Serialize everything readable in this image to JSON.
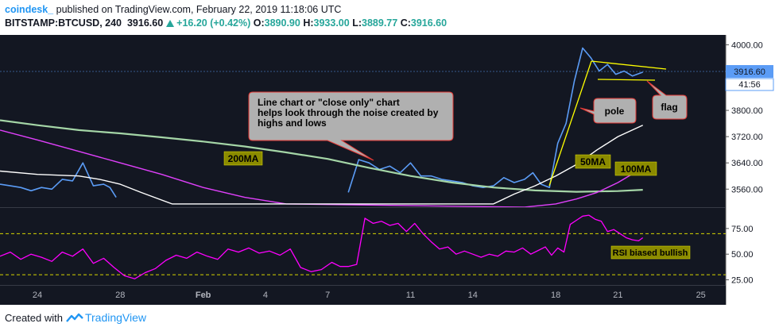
{
  "header": {
    "brand": "coindesk_",
    "published": "published on TradingView.com, February 22, 2019 11:18:06 UTC",
    "symbol": "BITSTAMP:BTCUSD, 240",
    "last": "3916.60",
    "change": "+16.20 (+0.42%)",
    "o_label": "O:",
    "o": "3890.90",
    "h_label": "H:",
    "h": "3933.00",
    "l_label": "L:",
    "l": "3889.77",
    "c_label": "C:",
    "c": "3916.60"
  },
  "footer": {
    "created_with": "Created with",
    "tradingview": "TradingView"
  },
  "colors": {
    "background": "#131722",
    "price": "#5b9cf6",
    "ma200": "#a5d6a7",
    "ma100": "#e040fb",
    "ma50": "#ffffff",
    "rsi": "#ff00ff",
    "annotation_fill": "#b0b0b0",
    "annotation_border": "#e53935",
    "pattern_lines": "#ffff00",
    "badge": "#8b8b00"
  },
  "annotations": {
    "callout": "Line chart or \"close only\" chart\nhelps look through the noise created by\nhighs and lows",
    "pole": "pole",
    "flag": "flag",
    "ma200": "200MA",
    "ma50": "50MA",
    "ma100": "100MA",
    "rsi_note": "RSI biased bullish"
  },
  "price_tag": {
    "value": "3916.60",
    "countdown": "41:56"
  },
  "chart_data": [
    {
      "type": "line",
      "title": "BITSTAMP:BTCUSD, 240",
      "x_ticks": [
        "24",
        "28",
        "Feb",
        "4",
        "7",
        "11",
        "14",
        "18",
        "21",
        "25"
      ],
      "x_tick_days": [
        24,
        28,
        32,
        35,
        38,
        42,
        45,
        49,
        52,
        56
      ],
      "x_range": [
        22.2,
        57.2
      ],
      "y_ticks": [
        3560,
        3640,
        3720,
        3800,
        4000
      ],
      "ylim": [
        3505,
        4030
      ],
      "log_scale": false,
      "grid": false,
      "series": [
        {
          "name": "",
          "role": "price",
          "x": [
            22.2,
            22.7,
            23.2,
            23.7,
            24.2,
            24.7,
            25.2,
            25.7,
            26.2,
            26.7,
            27.2,
            27.5,
            27.8
          ],
          "values": [
            3575,
            3570,
            3565,
            3555,
            3565,
            3560,
            3590,
            3585,
            3640,
            3570,
            3575,
            3565,
            3535
          ]
        },
        {
          "name": "",
          "role": "price",
          "x": [
            39.0,
            39.5,
            40.0,
            40.5,
            41.0,
            41.5,
            42.0,
            42.5,
            43.0,
            43.5,
            44.0,
            44.5,
            45.0,
            45.5,
            46.0,
            46.5,
            47.0,
            47.5,
            47.9,
            48.3,
            48.7,
            49.1,
            49.5,
            49.9,
            50.3,
            50.7,
            51.1,
            51.5,
            51.9,
            52.3,
            52.7,
            53.2
          ],
          "values": [
            3550,
            3650,
            3640,
            3620,
            3630,
            3610,
            3640,
            3600,
            3600,
            3590,
            3585,
            3580,
            3570,
            3565,
            3570,
            3595,
            3580,
            3590,
            3610,
            3575,
            3565,
            3700,
            3760,
            3890,
            3990,
            3960,
            3920,
            3940,
            3910,
            3920,
            3905,
            3916.6
          ]
        },
        {
          "name": "200MA",
          "x": [
            22.2,
            24,
            26,
            28,
            30,
            32,
            34,
            36,
            38,
            40,
            42,
            44,
            46,
            48,
            50,
            52,
            53.2
          ],
          "values": [
            3770,
            3755,
            3740,
            3730,
            3718,
            3705,
            3690,
            3672,
            3652,
            3625,
            3600,
            3580,
            3565,
            3556,
            3552,
            3554,
            3558
          ]
        },
        {
          "name": "100MA",
          "x": [
            22.2,
            24,
            26,
            28,
            30,
            32,
            34,
            36,
            47.5,
            49,
            50,
            51,
            52,
            53.2
          ],
          "values": [
            3740,
            3710,
            3675,
            3640,
            3605,
            3565,
            3535,
            3515,
            3505,
            3515,
            3530,
            3550,
            3580,
            3625
          ]
        },
        {
          "name": "50MA",
          "x": [
            22.2,
            24,
            26,
            27,
            28,
            29,
            30.5,
            46,
            47,
            48,
            49,
            50,
            51,
            52,
            53.2
          ],
          "values": [
            3615,
            3605,
            3600,
            3590,
            3575,
            3550,
            3515,
            3515,
            3545,
            3570,
            3600,
            3635,
            3680,
            3720,
            3755
          ]
        }
      ]
    },
    {
      "type": "line",
      "title": "RSI",
      "x_range": [
        22.2,
        57.2
      ],
      "y_ticks": [
        25,
        50,
        75
      ],
      "ylim": [
        20,
        95
      ],
      "guides": [
        30,
        70
      ],
      "grid": false,
      "series": [
        {
          "name": "",
          "x": [
            22.2,
            22.7,
            23.2,
            23.7,
            24.2,
            24.7,
            25.2,
            25.7,
            26.2,
            26.7,
            27.2,
            27.7,
            28.2,
            28.7,
            29.2,
            29.7,
            30.2,
            30.7,
            31.2,
            31.7,
            32.2,
            32.7,
            33.2,
            33.7,
            34.2,
            34.7,
            35.2,
            35.7,
            36.2,
            36.7,
            37.2,
            37.7,
            38.2,
            38.6,
            39.0,
            39.4,
            39.8,
            40.2,
            40.6,
            41.0,
            41.4,
            41.8,
            42.2,
            42.6,
            43.0,
            43.4,
            43.8,
            44.2,
            44.6,
            45.0,
            45.4,
            45.8,
            46.2,
            46.6,
            47.0,
            47.4,
            47.8,
            48.2,
            48.5,
            48.8,
            49.1,
            49.4,
            49.7,
            50.0,
            50.3,
            50.6,
            50.9,
            51.2,
            51.5,
            51.8,
            52.1,
            52.4,
            52.7,
            53.0,
            53.2
          ],
          "values": [
            48,
            52,
            45,
            50,
            47,
            43,
            52,
            48,
            55,
            41,
            46,
            37,
            29,
            26,
            32,
            36,
            44,
            49,
            46,
            52,
            48,
            45,
            55,
            52,
            56,
            51,
            53,
            49,
            55,
            37,
            33,
            35,
            42,
            38,
            38,
            40,
            85,
            80,
            82,
            78,
            80,
            72,
            80,
            70,
            62,
            55,
            57,
            50,
            53,
            50,
            47,
            50,
            48,
            53,
            52,
            56,
            50,
            54,
            57,
            49,
            56,
            52,
            79,
            83,
            87,
            88,
            84,
            82,
            72,
            74,
            70,
            66,
            64,
            63,
            66
          ]
        }
      ]
    }
  ]
}
